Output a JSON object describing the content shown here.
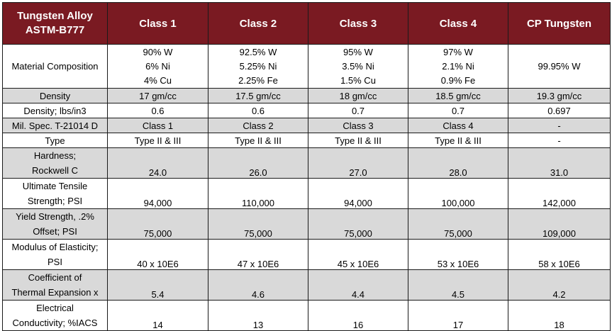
{
  "header": {
    "title_line1": "Tungsten Alloy",
    "title_line2": "ASTM-B777",
    "columns": [
      "Class 1",
      "Class 2",
      "Class 3",
      "Class 4",
      "CP Tungsten"
    ]
  },
  "rows": {
    "composition": {
      "label": "Material Composition",
      "values": [
        [
          "90% W",
          "6% Ni",
          "4% Cu"
        ],
        [
          "92.5% W",
          "5.25% Ni",
          "2.25% Fe"
        ],
        [
          "95% W",
          "3.5% Ni",
          "1.5% Cu"
        ],
        [
          "97% W",
          "2.1% Ni",
          "0.9% Fe"
        ],
        [
          "99.95% W"
        ]
      ]
    },
    "density": {
      "label": "Density",
      "values": [
        "17 gm/cc",
        "17.5 gm/cc",
        "18 gm/cc",
        "18.5 gm/cc",
        "19.3 gm/cc"
      ]
    },
    "density_lbs": {
      "label": "Density; lbs/in3",
      "values": [
        "0.6",
        "0.6",
        "0.7",
        "0.7",
        "0.697"
      ]
    },
    "mil_spec": {
      "label": "Mil. Spec. T-21014 D",
      "values": [
        "Class 1",
        "Class 2",
        "Class 3",
        "Class 4",
        "-"
      ]
    },
    "type": {
      "label": "Type",
      "values": [
        "Type II & III",
        "Type II & III",
        "Type II & III",
        "Type II & III",
        "-"
      ]
    },
    "hardness": {
      "label_line1": "Hardness;",
      "label_line2": "Rockwell C",
      "values": [
        "24.0",
        "26.0",
        "27.0",
        "28.0",
        "31.0"
      ]
    },
    "tensile": {
      "label_line1": "Ultimate Tensile",
      "label_line2": "Strength; PSI",
      "values": [
        "94,000",
        "110,000",
        "94,000",
        "100,000",
        "142,000"
      ]
    },
    "yield": {
      "label_line1": "Yield Strength, .2%",
      "label_line2": "Offset; PSI",
      "values": [
        "75,000",
        "75,000",
        "75,000",
        "75,000",
        "109,000"
      ]
    },
    "modulus": {
      "label_line1": "Modulus of Elasticity;",
      "label_line2": "PSI",
      "values": [
        "40 x 10E6",
        "47 x 10E6",
        "45 x 10E6",
        "53 x 10E6",
        "58 x 10E6"
      ]
    },
    "thermal": {
      "label_line1": "Coefficient of",
      "label_line2": "Thermal Expansion x",
      "values": [
        "5.4",
        "4.6",
        "4.4",
        "4.5",
        "4.2"
      ]
    },
    "conductivity": {
      "label_line1": "Electrical",
      "label_line2": "Conductivity; %IACS",
      "values": [
        "14",
        "13",
        "16",
        "17",
        "18"
      ]
    }
  },
  "colors": {
    "header_bg": "#7a1a22",
    "shade_bg": "#d9d9d9"
  }
}
